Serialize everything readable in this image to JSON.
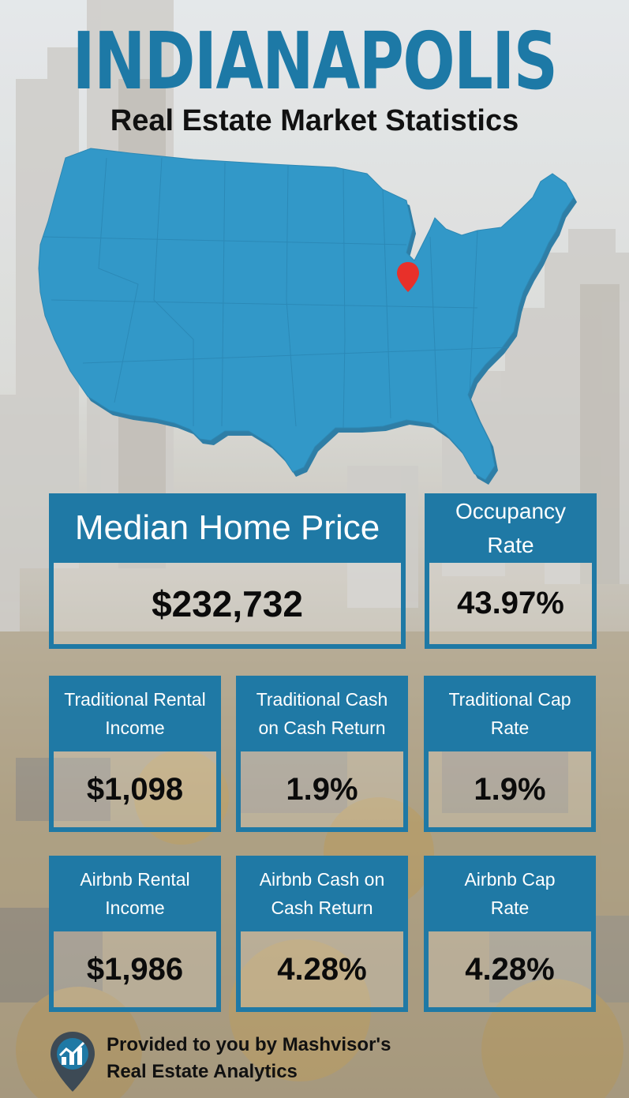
{
  "header": {
    "city": "INDIANAPOLIS",
    "subtitle": "Real Estate Market Statistics"
  },
  "map": {
    "icon": "usa-map-icon",
    "marker": "location-pin-icon",
    "map_color": "#3298c8",
    "marker_color": "#e8302a"
  },
  "stats": {
    "median_home_price": {
      "label": "Median Home Price",
      "value": "$232,732"
    },
    "occupancy_rate": {
      "label_line1": "Occupancy",
      "label_line2": "Rate",
      "value": "43.97%"
    },
    "traditional_rental_income": {
      "label_line1": "Traditional Rental",
      "label_line2": "Income",
      "value": "$1,098"
    },
    "traditional_cash_on_cash": {
      "label_line1": "Traditional Cash",
      "label_line2": "on Cash Return",
      "value": "1.9%"
    },
    "traditional_cap_rate": {
      "label_line1": "Traditional Cap",
      "label_line2": "Rate",
      "value": "1.9%"
    },
    "airbnb_rental_income": {
      "label_line1": "Airbnb Rental",
      "label_line2": "Income",
      "value": "$1,986"
    },
    "airbnb_cash_on_cash": {
      "label_line1": "Airbnb Cash on",
      "label_line2": "Cash Return",
      "value": "4.28%"
    },
    "airbnb_cap_rate": {
      "label_line1": "Airbnb Cap",
      "label_line2": "Rate",
      "value": "4.28%"
    }
  },
  "footer": {
    "line1": "Provided to you by Mashvisor's",
    "line2": "Real Estate Analytics",
    "icon": "mashvisor-logo-icon"
  },
  "colors": {
    "brand_blue": "#1f79a5",
    "title_blue": "#1d79a6",
    "text_dark": "#111111"
  }
}
